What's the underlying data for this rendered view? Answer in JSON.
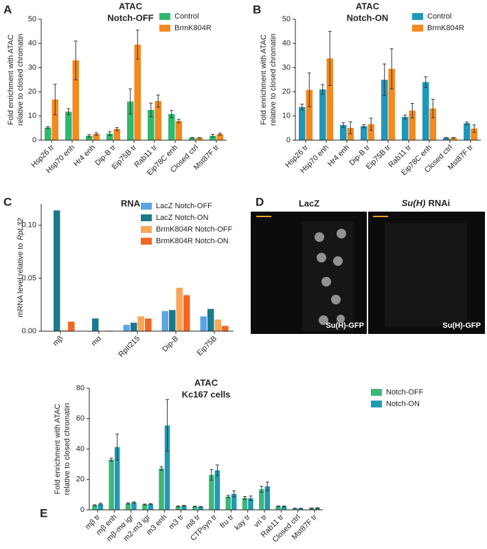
{
  "chart_data": [
    {
      "type": "bar",
      "panel": "A",
      "title": "ATAC",
      "subtitle": "Notch-OFF",
      "ylabel": [
        "Fold enrichment with ATAC",
        "relative to closed chromatin"
      ],
      "categories": [
        "Hsp26 tr",
        "Hsp70 enh",
        "Hr4 enh",
        "Dip-B tr",
        "Eip75B tr",
        "Rab11 tr",
        "Eip78C enh",
        "Closed ctrl",
        "Mst87F tr"
      ],
      "series": [
        {
          "name": "Control",
          "color": "#2dba6f",
          "values": [
            5.2,
            11.8,
            1.8,
            2.7,
            16,
            12.5,
            10.8,
            1,
            1.8
          ],
          "errors": [
            0.4,
            1.2,
            0.5,
            0.8,
            5.2,
            2.8,
            1.5,
            0.1,
            0.6
          ]
        },
        {
          "name": "BrmK804R",
          "color": "#f4891f",
          "values": [
            16.8,
            33,
            2.6,
            4.6,
            39.5,
            16.2,
            7.9,
            1,
            2.5
          ],
          "errors": [
            6.3,
            8,
            0.5,
            0.6,
            6,
            2.5,
            0.7,
            0.1,
            0.4
          ]
        }
      ],
      "ylim": [
        0,
        50
      ],
      "yticks": [
        0,
        10,
        20,
        30,
        40,
        50
      ]
    },
    {
      "type": "bar",
      "panel": "B",
      "title": "ATAC",
      "subtitle": "Notch-ON",
      "ylabel": [
        "Fold enrichment with ATAC",
        "relative to closed chromatin"
      ],
      "categories": [
        "Hsp26 tr",
        "Hsp70 enh",
        "Hr4 enh",
        "Dip-B tr",
        "Eip75B tr",
        "Rab11 tr",
        "Eip78C enh",
        "Closed ctrl",
        "Mst87F tr"
      ],
      "series": [
        {
          "name": "Control",
          "color": "#1f97b8",
          "values": [
            13.7,
            21,
            6.3,
            5.8,
            25,
            9.6,
            24,
            1,
            7
          ],
          "errors": [
            1.2,
            2,
            1,
            0.6,
            6.5,
            0.8,
            2.2,
            0.1,
            0.5
          ]
        },
        {
          "name": "BrmK804R",
          "color": "#f4891f",
          "values": [
            20.8,
            33.8,
            5.1,
            6.6,
            29.5,
            12.2,
            13.1,
            1,
            4.8
          ],
          "errors": [
            7,
            11.2,
            2.5,
            2.5,
            8.3,
            3,
            3.8,
            0.1,
            1.5
          ]
        }
      ],
      "ylim": [
        0,
        50
      ],
      "yticks": [
        0,
        10,
        20,
        30,
        40,
        50
      ]
    },
    {
      "type": "bar",
      "panel": "C",
      "title": "RNA",
      "ylabel": [
        "mRNA level relative to",
        "RpL32"
      ],
      "categories": [
        "mβ",
        "mα",
        "RpII215",
        "Dip-B",
        "Eip75B"
      ],
      "series": [
        {
          "name": "LacZ Notch-OFF",
          "color": "#5aa5e6",
          "values": [
            0,
            0,
            0.006,
            0.019,
            0.014
          ]
        },
        {
          "name": "LacZ Notch-ON",
          "color": "#1a7a8c",
          "values": [
            0.114,
            0.012,
            0.008,
            0.02,
            0.021
          ]
        },
        {
          "name": "BrmK804R Notch-OFF",
          "color": "#f9a65a",
          "values": [
            0.001,
            0,
            0.014,
            0.041,
            0.011
          ]
        },
        {
          "name": "BrmK804R Notch-ON",
          "color": "#f26522",
          "values": [
            0.009,
            0.0005,
            0.012,
            0.034,
            0.005
          ]
        }
      ],
      "ylim": [
        0,
        0.12
      ],
      "yticks": [
        {
          "value": 0,
          "label": "0.00"
        },
        {
          "value": 0.05,
          "label": "0.05"
        },
        {
          "value": 0.1,
          "label": "0.10"
        }
      ]
    },
    {
      "type": "bar",
      "panel": "E",
      "title": "ATAC",
      "subtitle": "Kc167 cells",
      "ylabel": [
        "Fold enrichment with ATAC",
        "relative to closed chromatin"
      ],
      "categories": [
        "mβ tr",
        "mβ enh",
        "mβ-mα igr",
        "m2-m3 igr",
        "m3 enh",
        "m3 tr",
        "m8 tr",
        "CTPsyn tr",
        "fru tr",
        "kay tr",
        "vri tr",
        "Rab11 tr",
        "Closed ctrl",
        "Mst87F tr"
      ],
      "series": [
        {
          "name": "Notch-OFF",
          "color": "#3cb878",
          "values": [
            3,
            33,
            4.2,
            3.5,
            27.2,
            2.3,
            2.2,
            23,
            8.7,
            7.8,
            13.5,
            2.3,
            1,
            1
          ],
          "errors": [
            0.3,
            1,
            0.4,
            0.3,
            1.2,
            0.3,
            0.2,
            3.5,
            0.8,
            1,
            2,
            0.3,
            0.1,
            0.2
          ]
        },
        {
          "name": "Notch-ON",
          "color": "#1f9ab5",
          "values": [
            3.8,
            41.3,
            4.8,
            3.8,
            55.5,
            2.7,
            2,
            26,
            10.5,
            7.6,
            15.4,
            2.3,
            1,
            1.2
          ],
          "errors": [
            0.6,
            8.5,
            0.4,
            0.3,
            17,
            0.3,
            0.2,
            3.5,
            2,
            1.5,
            2.8,
            0.3,
            0.1,
            0.2
          ]
        }
      ],
      "ylim": [
        0,
        80
      ],
      "yticks": [
        0,
        20,
        40,
        60,
        80
      ]
    }
  ],
  "micrograph": {
    "panel": "D",
    "left_label": "LacZ",
    "right_label": [
      "Su(H)",
      "RNAi"
    ],
    "left_caption": "Su(H)-GFP",
    "right_caption": "Su(H)-GFP"
  }
}
